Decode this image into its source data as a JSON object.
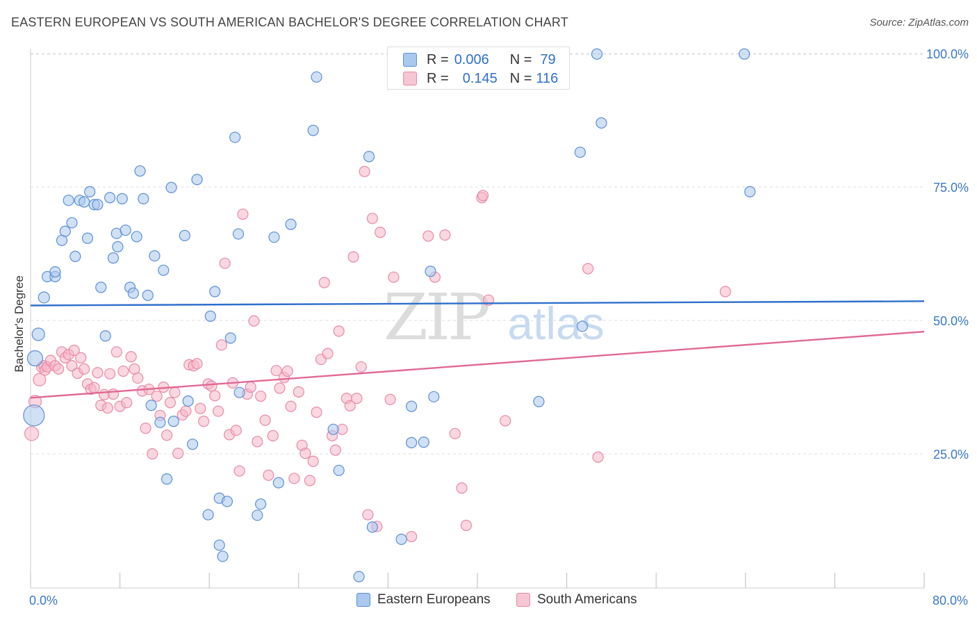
{
  "title": "EASTERN EUROPEAN VS SOUTH AMERICAN BACHELOR'S DEGREE CORRELATION CHART",
  "source": "Source: ZipAtlas.com",
  "watermark": {
    "zip": "ZIP",
    "atlas": "atlas"
  },
  "legend": {
    "rows": [
      {
        "r_label": "R =",
        "r_value": "0.006",
        "n_label": "N =",
        "n_value": "79"
      },
      {
        "r_label": "R =",
        "r_value": "0.145",
        "n_label": "N =",
        "n_value": "116"
      }
    ]
  },
  "colors": {
    "blue_fill": "#a9c8ee",
    "blue_stroke": "#5b8fd4",
    "blue_line": "#2e6fcc",
    "pink_fill": "#f5b7c9",
    "pink_stroke": "#e88aa6",
    "pink_line": "#e06a93",
    "tick_label": "#3a78c8",
    "grid": "#dddddd"
  },
  "chart_data": {
    "type": "scatter",
    "title": "EASTERN EUROPEAN VS SOUTH AMERICAN BACHELOR'S DEGREE CORRELATION CHART",
    "xlabel": "",
    "ylabel": "Bachelor's Degree",
    "xlim": [
      0,
      80
    ],
    "ylim": [
      0,
      103
    ],
    "x_tick_labels": [
      "0.0%",
      "80.0%"
    ],
    "y_ticks": [
      25,
      50,
      75,
      100
    ],
    "y_tick_labels": [
      "25.0%",
      "50.0%",
      "75.0%",
      "100.0%"
    ],
    "grid": true,
    "legend_position": "top-center",
    "series": [
      {
        "name": "Eastern Europeans",
        "R": 0.006,
        "N": 79,
        "trend": {
          "x": [
            0,
            80
          ],
          "y": [
            52.8,
            53.6
          ]
        },
        "points": [
          [
            0.3,
            32.2,
            30
          ],
          [
            0.4,
            42.9,
            22
          ],
          [
            0.7,
            47.4,
            18
          ],
          [
            1.2,
            54.3,
            16
          ],
          [
            1.5,
            58.2,
            15
          ],
          [
            2.2,
            58.2,
            15
          ],
          [
            2.2,
            59.1,
            15
          ],
          [
            2.8,
            65.0,
            15
          ],
          [
            3.1,
            66.7,
            15
          ],
          [
            3.4,
            72.5,
            15
          ],
          [
            3.7,
            68.3,
            15
          ],
          [
            4.0,
            62.0,
            15
          ],
          [
            4.4,
            72.5,
            15
          ],
          [
            4.8,
            72.2,
            15
          ],
          [
            5.1,
            65.4,
            15
          ],
          [
            5.3,
            74.1,
            15
          ],
          [
            5.7,
            71.7,
            15
          ],
          [
            6.0,
            71.7,
            15
          ],
          [
            6.3,
            56.2,
            15
          ],
          [
            6.7,
            47.1,
            15
          ],
          [
            7.1,
            73.0,
            15
          ],
          [
            7.4,
            61.7,
            15
          ],
          [
            7.7,
            66.3,
            15
          ],
          [
            7.8,
            63.8,
            15
          ],
          [
            8.2,
            72.8,
            15
          ],
          [
            8.5,
            66.9,
            15
          ],
          [
            8.9,
            56.2,
            15
          ],
          [
            9.2,
            55.1,
            15
          ],
          [
            9.5,
            65.7,
            15
          ],
          [
            9.8,
            78.0,
            15
          ],
          [
            10.1,
            72.8,
            15
          ],
          [
            10.5,
            54.7,
            15
          ],
          [
            10.8,
            34.1,
            15
          ],
          [
            11.1,
            62.1,
            15
          ],
          [
            11.6,
            30.9,
            15
          ],
          [
            11.9,
            59.4,
            15
          ],
          [
            12.2,
            20.3,
            15
          ],
          [
            12.6,
            74.9,
            15
          ],
          [
            12.8,
            31.1,
            15
          ],
          [
            13.8,
            65.9,
            15
          ],
          [
            14.1,
            34.9,
            15
          ],
          [
            14.5,
            26.8,
            15
          ],
          [
            14.9,
            76.4,
            15
          ],
          [
            15.9,
            13.6,
            15
          ],
          [
            16.1,
            50.8,
            15
          ],
          [
            16.5,
            55.4,
            15
          ],
          [
            16.9,
            16.7,
            15
          ],
          [
            16.9,
            7.9,
            15
          ],
          [
            17.2,
            5.8,
            15
          ],
          [
            17.6,
            16.1,
            15
          ],
          [
            17.9,
            46.7,
            15
          ],
          [
            18.3,
            84.3,
            15
          ],
          [
            18.6,
            66.2,
            15
          ],
          [
            18.7,
            36.5,
            15
          ],
          [
            20.3,
            13.5,
            15
          ],
          [
            20.6,
            15.6,
            15
          ],
          [
            21.8,
            65.6,
            15
          ],
          [
            22.2,
            19.6,
            15
          ],
          [
            23.3,
            68.0,
            15
          ],
          [
            25.3,
            85.6,
            15
          ],
          [
            25.6,
            95.6,
            15
          ],
          [
            27.1,
            29.6,
            15
          ],
          [
            27.6,
            21.9,
            15
          ],
          [
            29.4,
            2.0,
            15
          ],
          [
            30.3,
            80.7,
            15
          ],
          [
            30.6,
            11.3,
            15
          ],
          [
            33.2,
            9.0,
            15
          ],
          [
            34.1,
            33.9,
            15
          ],
          [
            34.1,
            27.1,
            15
          ],
          [
            35.2,
            27.2,
            15
          ],
          [
            35.8,
            59.2,
            15
          ],
          [
            36.1,
            35.7,
            15
          ],
          [
            45.5,
            34.8,
            15
          ],
          [
            49.2,
            81.5,
            15
          ],
          [
            49.4,
            48.9,
            15
          ],
          [
            50.7,
            99.9,
            15
          ],
          [
            51.1,
            87.0,
            15
          ],
          [
            63.9,
            99.9,
            15
          ],
          [
            64.4,
            74.1,
            15
          ]
        ]
      },
      {
        "name": "South Americans",
        "R": 0.145,
        "N": 116,
        "trend": {
          "x": [
            0,
            80
          ],
          "y": [
            35.5,
            47.9
          ]
        },
        "points": [
          [
            0.1,
            28.8,
            20
          ],
          [
            0.4,
            34.8,
            18
          ],
          [
            0.8,
            38.9,
            18
          ],
          [
            1.0,
            41.2,
            15
          ],
          [
            1.2,
            41.5,
            15
          ],
          [
            1.3,
            40.7,
            15
          ],
          [
            1.5,
            41.3,
            15
          ],
          [
            1.8,
            42.5,
            15
          ],
          [
            2.2,
            41.5,
            15
          ],
          [
            2.5,
            40.9,
            15
          ],
          [
            2.8,
            44.1,
            15
          ],
          [
            3.1,
            43.0,
            15
          ],
          [
            3.4,
            43.6,
            15
          ],
          [
            3.7,
            41.5,
            15
          ],
          [
            3.9,
            44.4,
            15
          ],
          [
            4.2,
            40.1,
            15
          ],
          [
            4.5,
            43.0,
            15
          ],
          [
            4.8,
            40.9,
            15
          ],
          [
            5.1,
            38.1,
            15
          ],
          [
            5.4,
            37.1,
            15
          ],
          [
            5.7,
            37.4,
            15
          ],
          [
            6.0,
            40.2,
            15
          ],
          [
            6.3,
            34.1,
            15
          ],
          [
            6.6,
            36.1,
            15
          ],
          [
            6.9,
            33.6,
            15
          ],
          [
            7.1,
            40.0,
            15
          ],
          [
            7.4,
            36.2,
            15
          ],
          [
            7.7,
            44.1,
            15
          ],
          [
            8.0,
            33.9,
            15
          ],
          [
            8.3,
            40.5,
            15
          ],
          [
            8.6,
            34.6,
            15
          ],
          [
            9.0,
            43.2,
            15
          ],
          [
            9.3,
            40.9,
            15
          ],
          [
            9.6,
            39.2,
            15
          ],
          [
            10.0,
            36.8,
            15
          ],
          [
            10.3,
            29.8,
            15
          ],
          [
            10.6,
            37.1,
            15
          ],
          [
            10.9,
            25.0,
            15
          ],
          [
            11.3,
            35.8,
            15
          ],
          [
            11.6,
            32.2,
            15
          ],
          [
            11.9,
            37.5,
            15
          ],
          [
            12.2,
            28.5,
            15
          ],
          [
            12.5,
            34.6,
            15
          ],
          [
            12.9,
            36.5,
            15
          ],
          [
            13.2,
            25.1,
            15
          ],
          [
            13.6,
            32.3,
            15
          ],
          [
            13.9,
            33.0,
            15
          ],
          [
            14.2,
            41.7,
            15
          ],
          [
            14.6,
            41.5,
            15
          ],
          [
            14.9,
            41.9,
            15
          ],
          [
            15.2,
            33.5,
            15
          ],
          [
            15.5,
            31.1,
            15
          ],
          [
            15.9,
            38.1,
            15
          ],
          [
            16.2,
            37.7,
            15
          ],
          [
            16.5,
            35.9,
            15
          ],
          [
            16.8,
            33.0,
            15
          ],
          [
            17.1,
            45.4,
            15
          ],
          [
            17.4,
            60.7,
            15
          ],
          [
            17.8,
            28.6,
            15
          ],
          [
            18.1,
            38.3,
            15
          ],
          [
            18.4,
            29.4,
            15
          ],
          [
            18.7,
            21.8,
            15
          ],
          [
            19.0,
            69.9,
            15
          ],
          [
            19.4,
            36.2,
            15
          ],
          [
            19.7,
            37.5,
            15
          ],
          [
            20.0,
            49.9,
            15
          ],
          [
            20.3,
            27.3,
            15
          ],
          [
            20.6,
            35.8,
            15
          ],
          [
            21.0,
            31.3,
            15
          ],
          [
            21.3,
            21.0,
            15
          ],
          [
            21.7,
            28.4,
            15
          ],
          [
            22.0,
            40.6,
            15
          ],
          [
            22.3,
            37.3,
            15
          ],
          [
            22.7,
            39.3,
            15
          ],
          [
            23.0,
            40.5,
            15
          ],
          [
            23.3,
            33.9,
            15
          ],
          [
            23.6,
            20.4,
            15
          ],
          [
            24.0,
            36.6,
            15
          ],
          [
            24.3,
            26.6,
            15
          ],
          [
            24.6,
            25.1,
            15
          ],
          [
            25.0,
            20.0,
            15
          ],
          [
            25.3,
            23.6,
            15
          ],
          [
            25.6,
            32.8,
            15
          ],
          [
            26.0,
            42.7,
            15
          ],
          [
            26.3,
            57.1,
            15
          ],
          [
            26.6,
            43.8,
            15
          ],
          [
            27.0,
            28.4,
            15
          ],
          [
            27.3,
            25.7,
            15
          ],
          [
            27.6,
            48.0,
            15
          ],
          [
            27.9,
            29.6,
            15
          ],
          [
            28.3,
            35.4,
            15
          ],
          [
            28.6,
            34.0,
            15
          ],
          [
            28.9,
            61.9,
            15
          ],
          [
            29.2,
            35.4,
            15
          ],
          [
            29.6,
            41.3,
            15
          ],
          [
            29.9,
            77.9,
            15
          ],
          [
            30.2,
            13.6,
            15
          ],
          [
            30.6,
            69.1,
            15
          ],
          [
            31.0,
            11.4,
            15
          ],
          [
            31.3,
            66.5,
            15
          ],
          [
            32.2,
            35.2,
            15
          ],
          [
            32.5,
            58.1,
            15
          ],
          [
            34.1,
            9.5,
            15
          ],
          [
            35.6,
            65.8,
            15
          ],
          [
            36.2,
            58.1,
            15
          ],
          [
            37.1,
            66.0,
            15
          ],
          [
            38.0,
            28.8,
            15
          ],
          [
            38.6,
            18.6,
            15
          ],
          [
            39.0,
            11.6,
            15
          ],
          [
            40.4,
            73.0,
            15
          ],
          [
            40.5,
            73.4,
            15
          ],
          [
            41.0,
            53.8,
            15
          ],
          [
            42.5,
            31.2,
            15
          ],
          [
            49.9,
            59.7,
            15
          ],
          [
            50.8,
            24.4,
            15
          ],
          [
            62.2,
            55.4,
            15
          ]
        ]
      }
    ]
  }
}
